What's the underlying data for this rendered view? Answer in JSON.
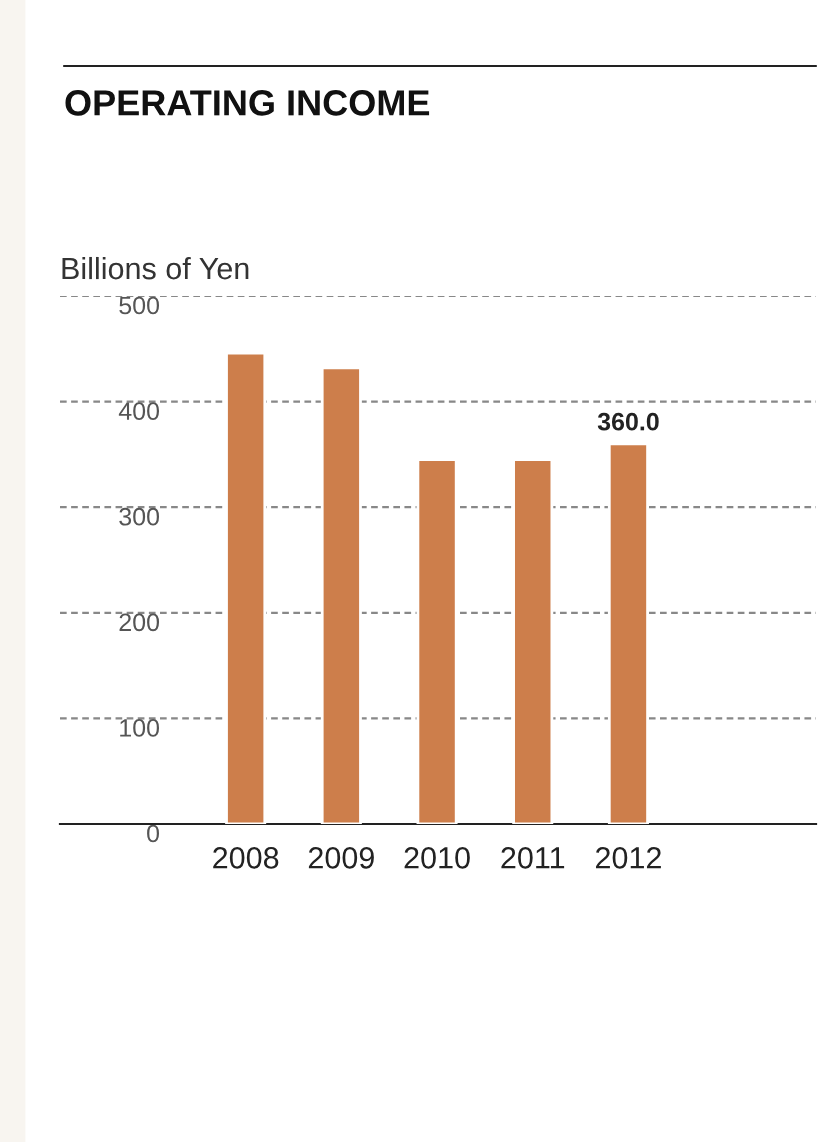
{
  "chart_data": {
    "type": "bar",
    "title": "OPERATING INCOME",
    "ylabel": "Billions of Yen",
    "categories": [
      "2008",
      "2009",
      "2010",
      "2011",
      "2012"
    ],
    "values": [
      446,
      432,
      345,
      345,
      360.0
    ],
    "value_labels": [
      null,
      null,
      null,
      null,
      "360.0"
    ],
    "color": "#cd7e4b",
    "ylim": [
      0,
      500
    ],
    "yticks": [
      0,
      100,
      200,
      300,
      400,
      500
    ],
    "grid": "y"
  }
}
